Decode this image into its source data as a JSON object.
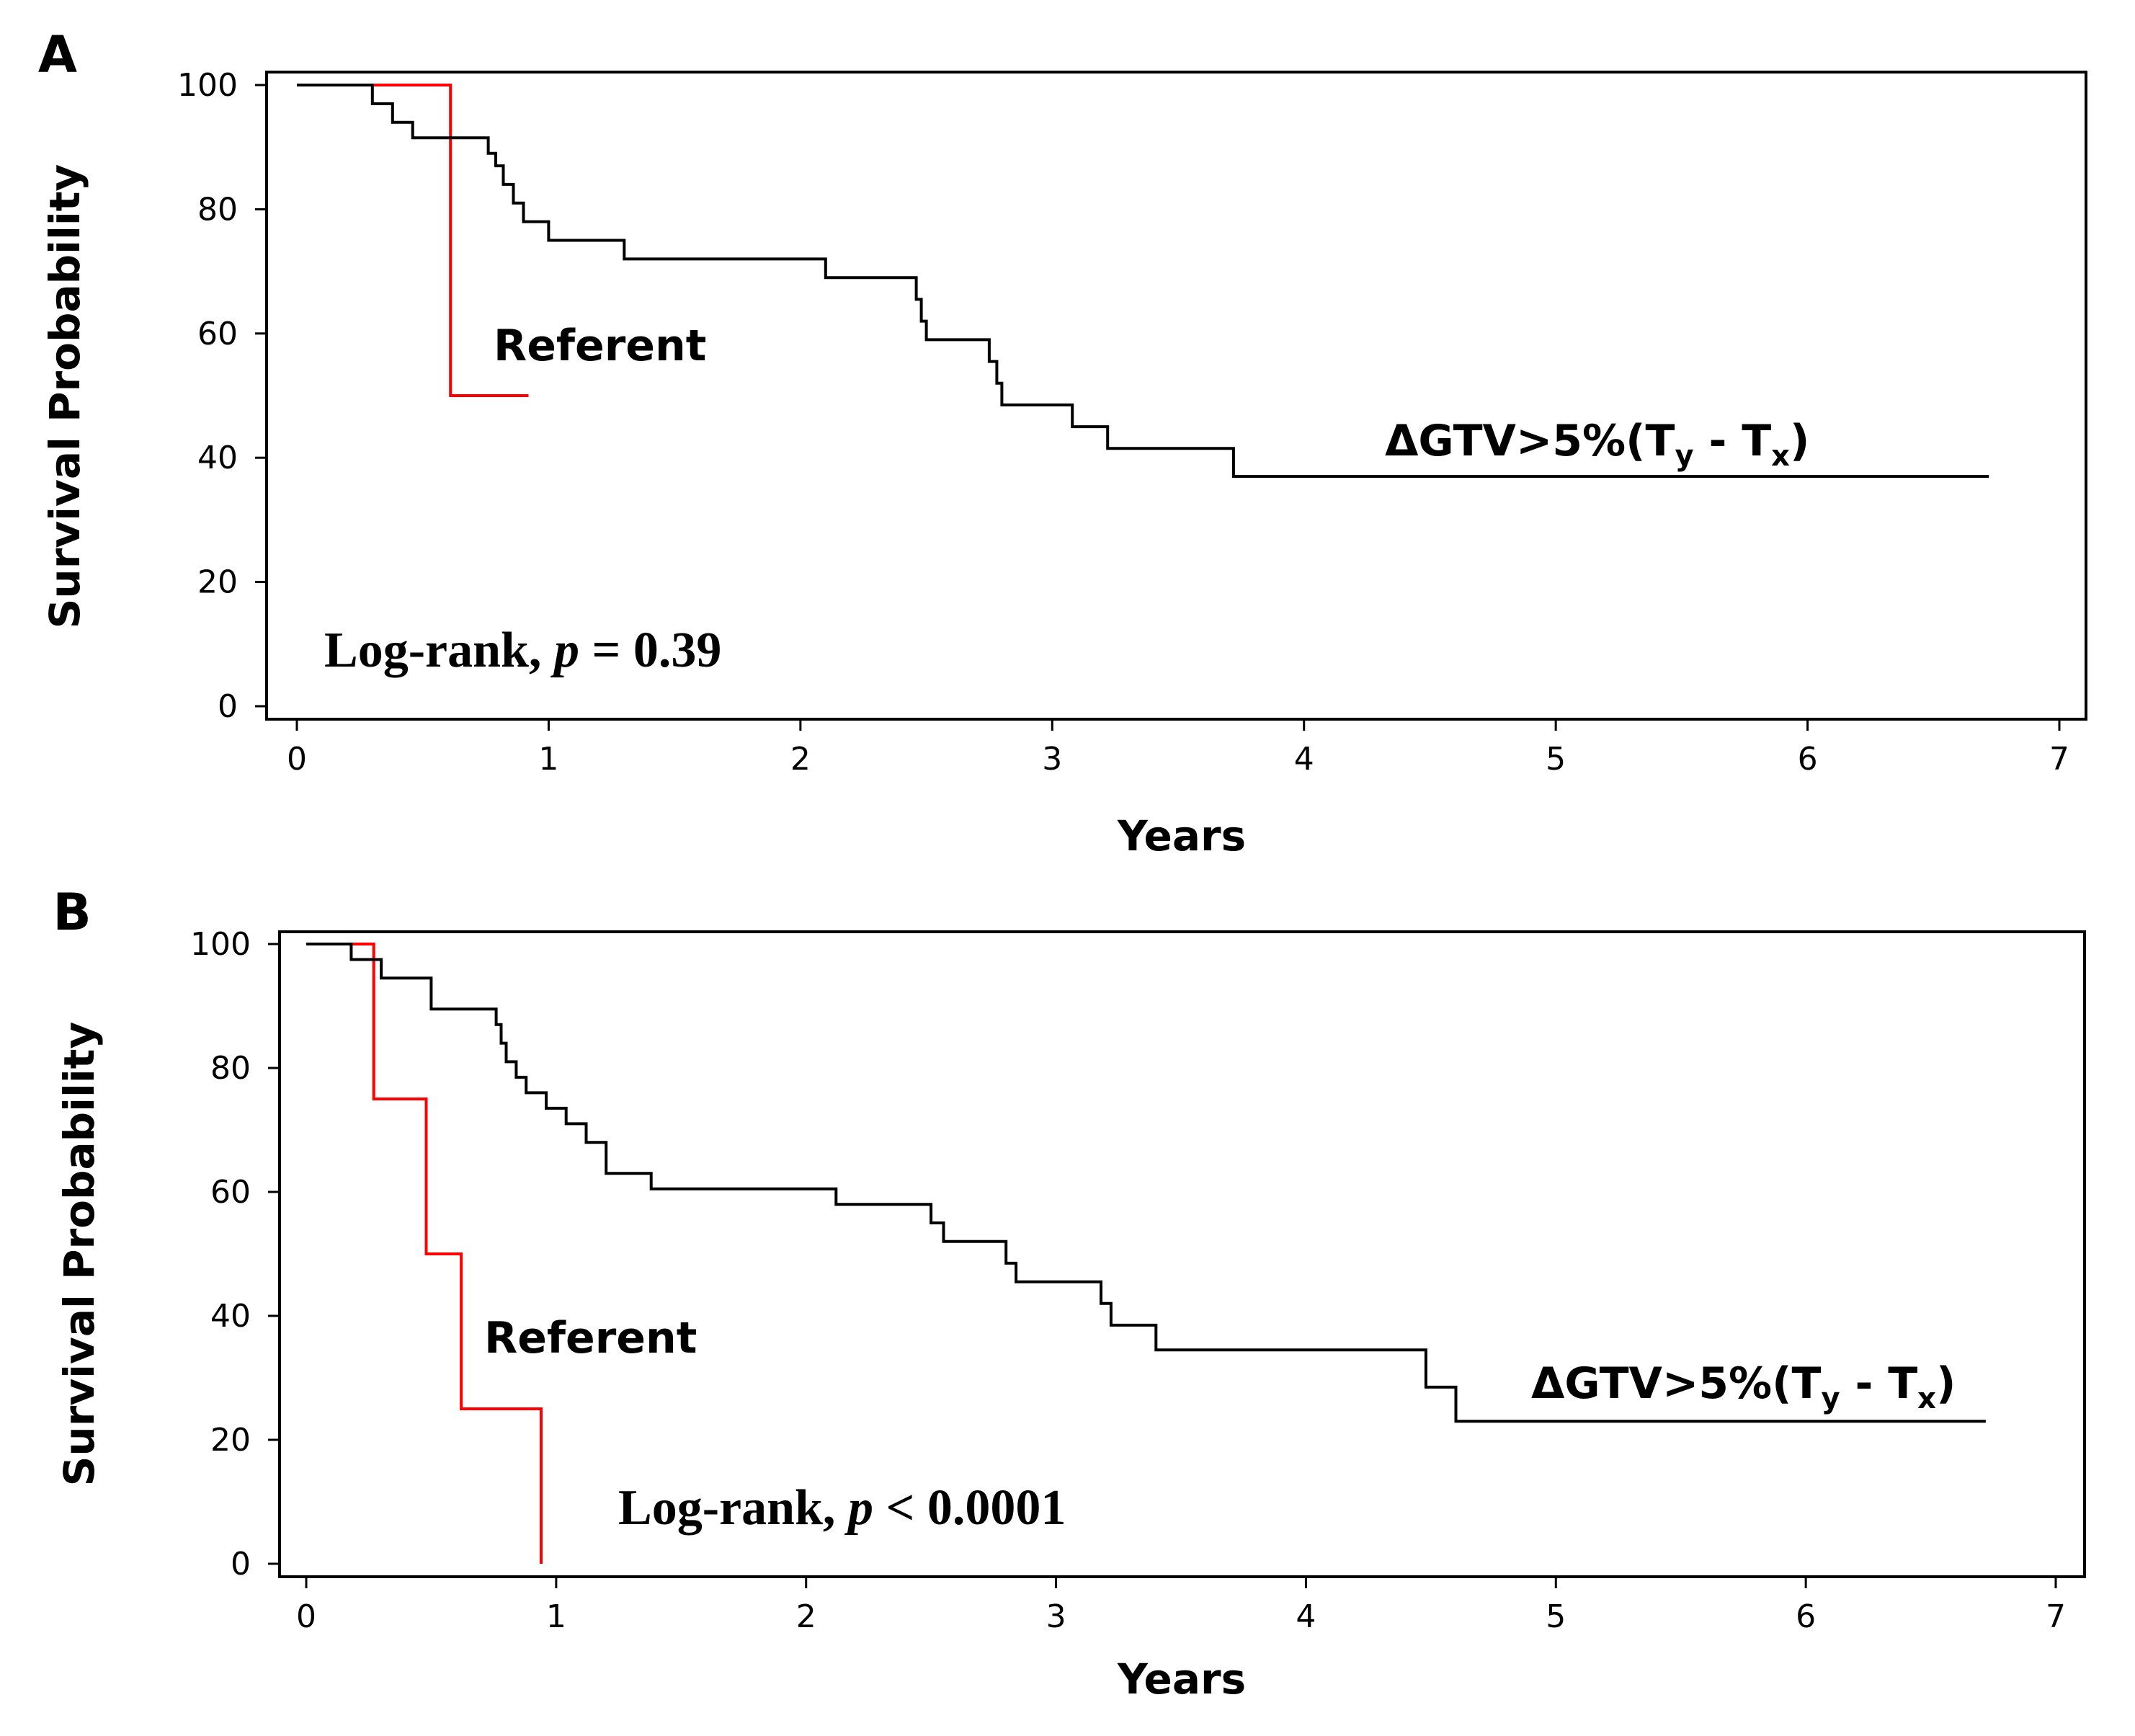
{
  "chart_data": [
    {
      "type": "line",
      "panel": "A",
      "xlabel": "Years",
      "ylabel": "Survival Probability",
      "xlim": [
        0,
        7
      ],
      "ylim": [
        0,
        100
      ],
      "x_ticks": [
        0,
        1,
        2,
        3,
        4,
        5,
        6,
        7
      ],
      "y_ticks": [
        0,
        20,
        40,
        60,
        80,
        100
      ],
      "annotation": {
        "prefix": "Log-rank,",
        "p": "p",
        "rest": "= 0.39"
      },
      "series": [
        {
          "name": "Referent",
          "color": "#ff0000",
          "step": true,
          "x": [
            0.3,
            0.61,
            0.61,
            0.92
          ],
          "y": [
            100,
            100,
            50,
            50
          ]
        },
        {
          "name": "ΔGTV>5%(T",
          "name_sub1": "y",
          "name_mid": " - T",
          "name_sub2": "x",
          "name_end": ")",
          "color": "#000000",
          "step": true,
          "x": [
            0,
            0.3,
            0.38,
            0.46,
            0.76,
            0.79,
            0.82,
            0.86,
            0.9,
            1.0,
            1.3,
            2.1,
            2.46,
            2.48,
            2.5,
            2.75,
            2.78,
            2.8,
            3.08,
            3.22,
            3.72,
            6.72
          ],
          "y": [
            100,
            97,
            94,
            91.5,
            89,
            87,
            84,
            81,
            78,
            75,
            72,
            69,
            65.5,
            62,
            59,
            55.5,
            52,
            48.5,
            45,
            41.5,
            37,
            37
          ]
        }
      ]
    },
    {
      "type": "line",
      "panel": "B",
      "xlabel": "Years",
      "ylabel": "Survival Probability",
      "xlim": [
        0,
        7
      ],
      "ylim": [
        0,
        100
      ],
      "x_ticks": [
        0,
        1,
        2,
        3,
        4,
        5,
        6,
        7
      ],
      "y_ticks": [
        0,
        20,
        40,
        60,
        80,
        100
      ],
      "annotation": {
        "prefix": "Log-rank,",
        "p": "p",
        "rest": "< 0.0001"
      },
      "series": [
        {
          "name": "Referent",
          "color": "#ff0000",
          "step": true,
          "x": [
            0.18,
            0.27,
            0.48,
            0.62,
            0.94,
            0.94
          ],
          "y": [
            100,
            75,
            50,
            25,
            25,
            0
          ]
        },
        {
          "name": "ΔGTV>5%(T",
          "name_sub1": "y",
          "name_mid": " - T",
          "name_sub2": "x",
          "name_end": ")",
          "color": "#000000",
          "step": true,
          "x": [
            0,
            0.18,
            0.3,
            0.5,
            0.76,
            0.78,
            0.8,
            0.84,
            0.88,
            0.96,
            1.04,
            1.12,
            1.2,
            1.38,
            2.12,
            2.5,
            2.55,
            2.61,
            2.8,
            2.84,
            3.18,
            3.22,
            3.4,
            4.48,
            4.6,
            6.72
          ],
          "y": [
            100,
            97.5,
            94.5,
            89.5,
            87,
            84,
            81,
            78.5,
            76,
            73.5,
            71,
            68,
            63,
            60.5,
            58,
            55,
            52,
            52,
            48.5,
            45.5,
            42,
            38.5,
            34.5,
            28.5,
            23,
            23
          ]
        }
      ]
    }
  ]
}
